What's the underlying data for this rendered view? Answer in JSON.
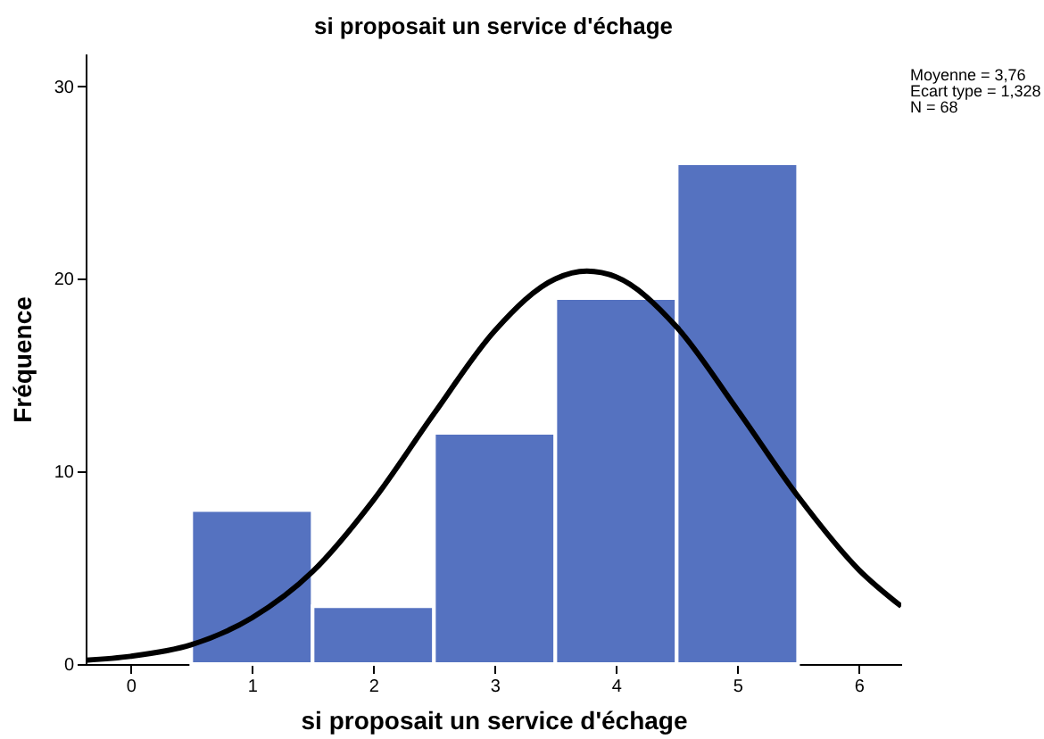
{
  "chart_data": {
    "type": "histogram",
    "title": "si proposait un service d'échage",
    "xlabel": "si proposait un service d'échage",
    "ylabel": "Fréquence",
    "annotations": [
      "Moyenne = 3,76",
      "Ecart type = 1,328",
      "N = 68"
    ],
    "bins": [
      0.5,
      1.5,
      2.5,
      3.5,
      4.5,
      5.5
    ],
    "series": [
      {
        "color": "#5572c0",
        "values": [
          8,
          3,
          12,
          19,
          26
        ]
      },
      {
        "type": "line",
        "color": "#000000",
        "x": [
          -0.37,
          0,
          0.5,
          1,
          1.5,
          2,
          2.5,
          3,
          3.5,
          3.76,
          4,
          4.5,
          5,
          5.5,
          6,
          6.35
        ],
        "values": [
          0.2,
          0.4,
          1,
          2.4,
          4.8,
          8.5,
          13,
          17.3,
          20,
          20.4,
          20.1,
          17.5,
          13.2,
          8.7,
          4.9,
          3
        ]
      }
    ],
    "xlim": [
      -0.37,
      6.35
    ],
    "xticks": [
      0,
      1,
      2,
      3,
      4,
      5,
      6
    ],
    "ylim": [
      0,
      31.7
    ],
    "yticks": [
      0,
      10,
      20,
      30
    ],
    "grid": false
  }
}
